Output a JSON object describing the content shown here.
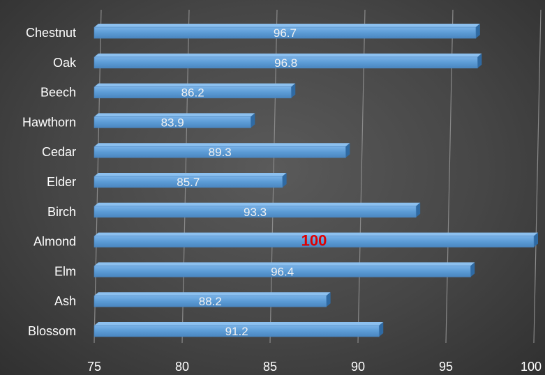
{
  "chart_data": {
    "type": "bar",
    "orientation": "horizontal",
    "categories": [
      "Chestnut",
      "Oak",
      "Beech",
      "Hawthorn",
      "Cedar",
      "Elder",
      "Birch",
      "Almond",
      "Elm",
      "Ash",
      "Blossom"
    ],
    "values": [
      96.7,
      96.8,
      86.2,
      83.9,
      89.3,
      85.7,
      93.3,
      100,
      96.4,
      88.2,
      91.2
    ],
    "data_labels": [
      "96.7",
      "96.8",
      "86.2",
      "83.9",
      "89.3",
      "85.7",
      "93.3",
      "100",
      "96.4",
      "88.2",
      "91.2"
    ],
    "highlight_index": 7,
    "xlim": [
      75,
      100
    ],
    "xticks": [
      "75",
      "80",
      "85",
      "90",
      "95",
      "100"
    ],
    "grid": true,
    "title": "",
    "xlabel": "",
    "ylabel": "",
    "colors": {
      "bar_front": "#5b9bd5",
      "bar_top": "#8cc0ef",
      "bar_side": "#2f6aa3",
      "label": "#f2f2f2",
      "highlight_label": "#e00000",
      "axis_text": "#ffffff",
      "grid": "#8a8a8a"
    }
  }
}
